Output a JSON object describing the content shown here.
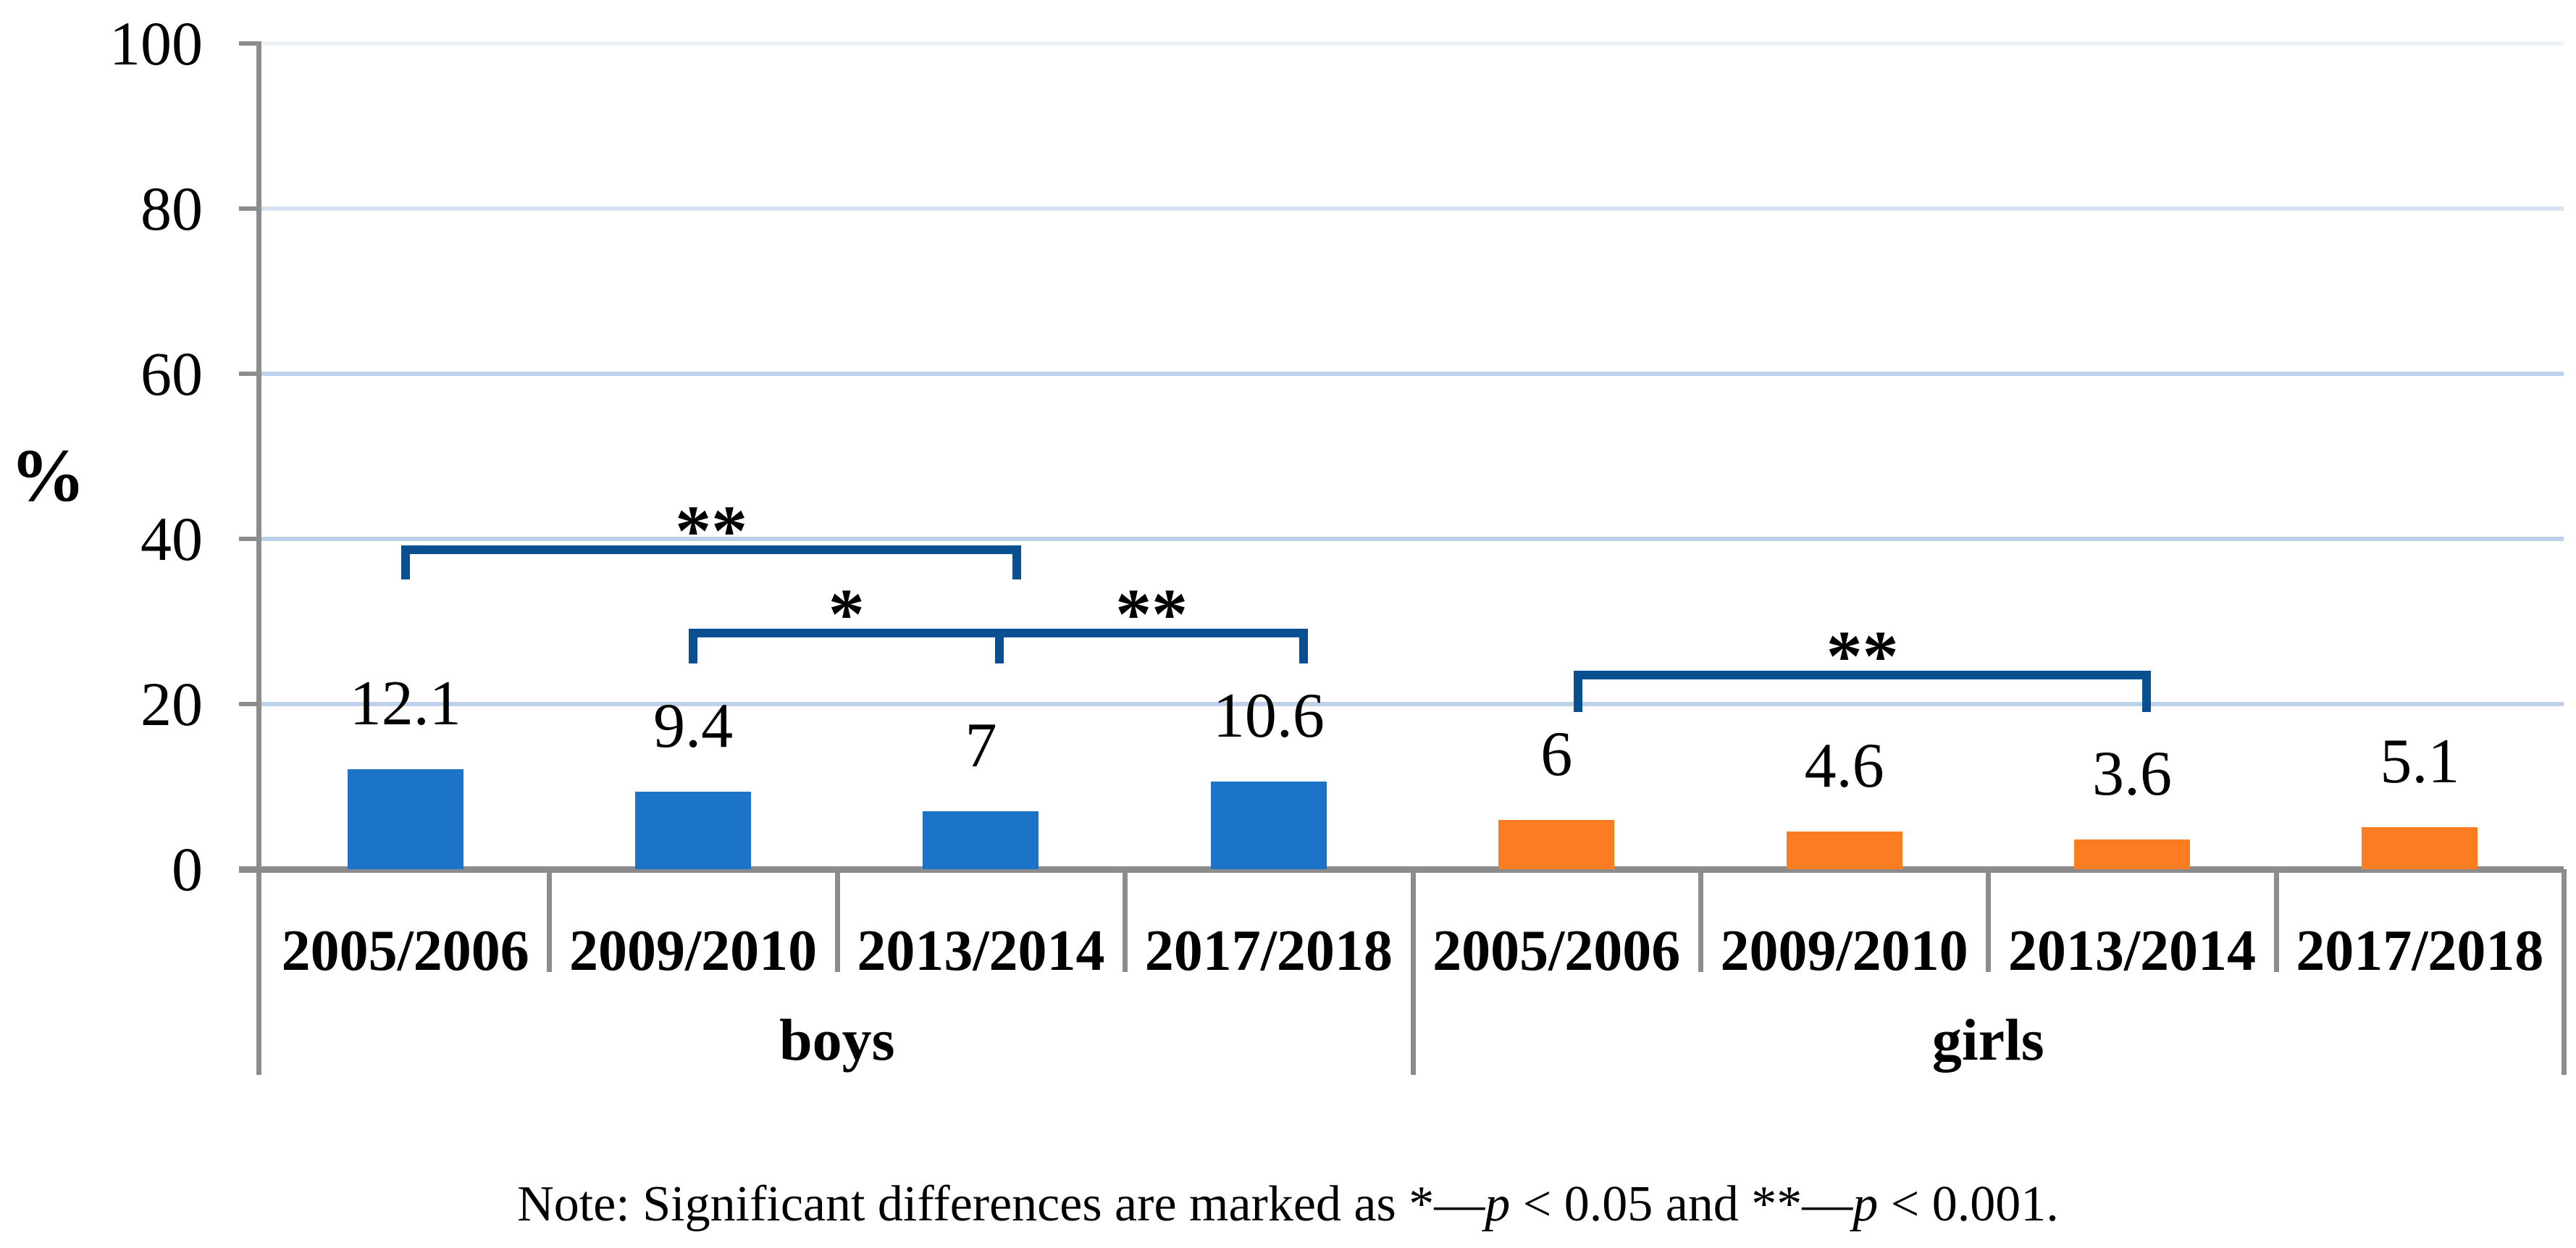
{
  "chart_data": {
    "type": "bar",
    "title": "",
    "ylabel": "%",
    "ylim": [
      0,
      100
    ],
    "yticks": [
      0,
      20,
      40,
      60,
      80,
      100
    ],
    "grid": true,
    "legend": "none",
    "categories": [
      "2005/2006",
      "2009/2010",
      "2013/2014",
      "2017/2018"
    ],
    "series": [
      {
        "name": "boys",
        "color": "#1C74C9",
        "values": [
          12.1,
          9.4,
          7,
          10.6
        ],
        "value_labels": [
          "12.1",
          "9.4",
          "7",
          "10.6"
        ]
      },
      {
        "name": "girls",
        "color": "#FC7D21",
        "values": [
          6,
          4.6,
          3.6,
          5.1
        ],
        "value_labels": [
          "6",
          "4.6",
          "3.6",
          "5.1"
        ]
      }
    ],
    "significance_brackets": [
      {
        "series": "boys",
        "from": "2005/2006",
        "to": "2013/2014",
        "marker": "**"
      },
      {
        "series": "boys",
        "from": "2009/2010",
        "to": "2013/2014",
        "marker": "*"
      },
      {
        "series": "boys",
        "from": "2013/2014",
        "to": "2017/2018",
        "marker": "**"
      },
      {
        "series": "girls",
        "from": "2005/2006",
        "to": "2013/2014",
        "marker": "**"
      }
    ],
    "note": "Note: Significant differences are marked as *—p < 0.05 and **—p < 0.001."
  },
  "colors": {
    "boys_bar": "#1C74C9",
    "girls_bar": "#FC7D21",
    "bracket": "#0A4F8F",
    "axis_gray": "#8C8C8C",
    "gridline": "#BED1EA",
    "gridline_80": "#D8E3F1",
    "gridline_100": "#EEF3FA",
    "text": "#000000"
  }
}
